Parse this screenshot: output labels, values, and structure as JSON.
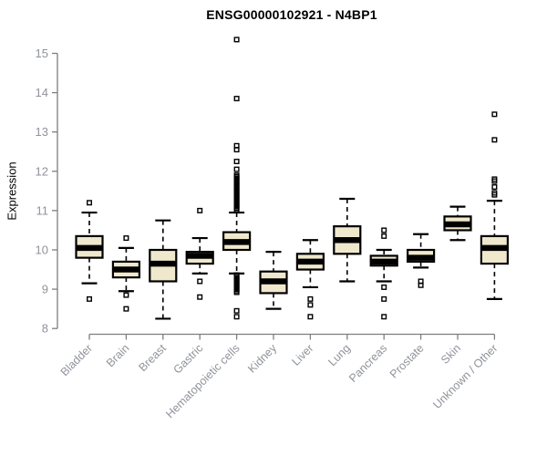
{
  "chart_data": {
    "type": "boxplot",
    "title": "ENSG00000102921 - N4BP1",
    "ylabel": "Expression",
    "ylim": [
      8,
      15.5
    ],
    "yticks": [
      8,
      9,
      10,
      11,
      12,
      13,
      14,
      15
    ],
    "grid": false,
    "legend": "none",
    "categories": [
      "Bladder",
      "Brain",
      "Breast",
      "Gastric",
      "Hematopoietic cells",
      "Kidney",
      "Liver",
      "Lung",
      "Pancreas",
      "Prostate",
      "Skin",
      "Unknown / Other"
    ],
    "series": [
      {
        "category": "Bladder",
        "whisker_low": 9.15,
        "q1": 9.8,
        "median": 10.05,
        "q3": 10.35,
        "whisker_high": 10.95,
        "outliers": [
          11.2,
          8.75
        ]
      },
      {
        "category": "Brain",
        "whisker_low": 8.95,
        "q1": 9.3,
        "median": 9.5,
        "q3": 9.7,
        "whisker_high": 10.05,
        "outliers": [
          10.3,
          8.85,
          8.5
        ]
      },
      {
        "category": "Breast",
        "whisker_low": 8.25,
        "q1": 9.2,
        "median": 9.65,
        "q3": 10.0,
        "whisker_high": 10.75,
        "outliers": []
      },
      {
        "category": "Gastric",
        "whisker_low": 9.4,
        "q1": 9.65,
        "median": 9.85,
        "q3": 9.95,
        "whisker_high": 10.3,
        "outliers": [
          11.0,
          9.2,
          8.8
        ]
      },
      {
        "category": "Hematopoietic cells",
        "whisker_low": 9.4,
        "q1": 10.0,
        "median": 10.2,
        "q3": 10.45,
        "whisker_high": 10.95,
        "outliers": [
          15.35,
          13.85,
          12.65,
          12.55,
          12.25,
          12.05,
          11.9,
          11.86,
          11.82,
          11.78,
          11.74,
          11.7,
          11.66,
          11.62,
          11.58,
          11.54,
          11.5,
          11.46,
          11.42,
          11.38,
          11.34,
          11.3,
          11.26,
          11.22,
          11.18,
          11.14,
          11.1,
          11.06,
          11.02,
          9.36,
          9.32,
          9.28,
          9.24,
          9.2,
          9.16,
          9.12,
          9.08,
          9.04,
          9.0,
          8.96,
          8.92,
          8.45,
          8.3
        ]
      },
      {
        "category": "Kidney",
        "whisker_low": 8.5,
        "q1": 8.9,
        "median": 9.2,
        "q3": 9.45,
        "whisker_high": 9.95,
        "outliers": []
      },
      {
        "category": "Liver",
        "whisker_low": 9.05,
        "q1": 9.5,
        "median": 9.7,
        "q3": 9.9,
        "whisker_high": 10.25,
        "outliers": [
          8.75,
          8.6,
          8.3
        ]
      },
      {
        "category": "Lung",
        "whisker_low": 9.2,
        "q1": 9.9,
        "median": 10.25,
        "q3": 10.6,
        "whisker_high": 11.3,
        "outliers": []
      },
      {
        "category": "Pancreas",
        "whisker_low": 9.2,
        "q1": 9.6,
        "median": 9.7,
        "q3": 9.85,
        "whisker_high": 10.0,
        "outliers": [
          10.5,
          10.35,
          9.05,
          8.75,
          8.3
        ]
      },
      {
        "category": "Prostate",
        "whisker_low": 9.55,
        "q1": 9.7,
        "median": 9.8,
        "q3": 10.0,
        "whisker_high": 10.4,
        "outliers": [
          9.2,
          9.1
        ]
      },
      {
        "category": "Skin",
        "whisker_low": 10.25,
        "q1": 10.5,
        "median": 10.65,
        "q3": 10.85,
        "whisker_high": 11.1,
        "outliers": []
      },
      {
        "category": "Unknown / Other",
        "whisker_low": 8.75,
        "q1": 9.65,
        "median": 10.05,
        "q3": 10.35,
        "whisker_high": 11.25,
        "outliers": [
          13.45,
          12.8,
          11.8,
          11.75,
          11.6,
          11.45,
          11.4
        ]
      }
    ],
    "colors": {
      "box_fill": "#F0E8CD",
      "box_border": "#000000",
      "median": "#000000",
      "whisker": "#000000",
      "axis": "#7E7E7E",
      "tick_label": "#90939B",
      "title": "#000000",
      "background": "#FFFFFF"
    }
  }
}
